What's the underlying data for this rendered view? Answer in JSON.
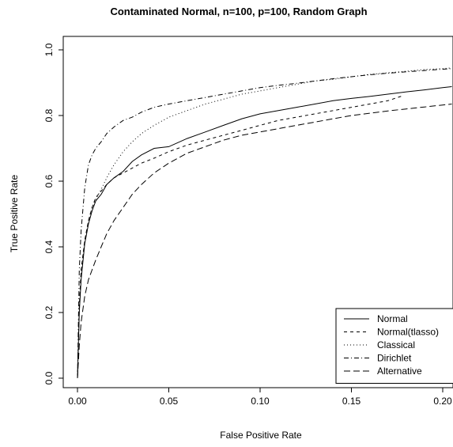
{
  "chart_data": {
    "type": "line",
    "title": "Contaminated Normal, n=100, p=100, Random Graph",
    "xlabel": "False Positive Rate",
    "ylabel": "True Positive Rate",
    "xlim": [
      0.0,
      0.205
    ],
    "ylim": [
      0.0,
      1.0
    ],
    "x_ticks": [
      0.0,
      0.05,
      0.1,
      0.15,
      0.2
    ],
    "x_tick_labels": [
      "0.00",
      "0.05",
      "0.10",
      "0.15",
      "0.20"
    ],
    "y_ticks": [
      0.0,
      0.2,
      0.4,
      0.6,
      0.8,
      1.0
    ],
    "y_tick_labels": [
      "0.0",
      "0.2",
      "0.4",
      "0.6",
      "0.8",
      "1.0"
    ],
    "grid": false,
    "legend_position": "bottom-right",
    "series": [
      {
        "name": "Normal",
        "dash": "solid",
        "x": [
          0,
          0.001,
          0.002,
          0.004,
          0.006,
          0.008,
          0.01,
          0.013,
          0.016,
          0.02,
          0.025,
          0.03,
          0.035,
          0.042,
          0.05,
          0.06,
          0.07,
          0.08,
          0.09,
          0.1,
          0.11,
          0.12,
          0.13,
          0.14,
          0.15,
          0.16,
          0.17,
          0.18,
          0.19,
          0.2,
          0.205
        ],
        "y": [
          0,
          0.2,
          0.3,
          0.41,
          0.47,
          0.51,
          0.54,
          0.56,
          0.59,
          0.61,
          0.63,
          0.66,
          0.68,
          0.7,
          0.705,
          0.73,
          0.75,
          0.77,
          0.79,
          0.805,
          0.815,
          0.825,
          0.835,
          0.845,
          0.852,
          0.858,
          0.865,
          0.872,
          0.878,
          0.885,
          0.888
        ]
      },
      {
        "name": "Normal(tlasso)",
        "dash": "4,4",
        "x": [
          0,
          0.001,
          0.002,
          0.004,
          0.006,
          0.008,
          0.01,
          0.013,
          0.016,
          0.02,
          0.025,
          0.03,
          0.035,
          0.042,
          0.05,
          0.06,
          0.07,
          0.08,
          0.09,
          0.1,
          0.11,
          0.12,
          0.13,
          0.14,
          0.15,
          0.16,
          0.17,
          0.178
        ],
        "y": [
          0,
          0.22,
          0.33,
          0.42,
          0.48,
          0.52,
          0.55,
          0.57,
          0.59,
          0.61,
          0.625,
          0.64,
          0.655,
          0.67,
          0.69,
          0.71,
          0.725,
          0.74,
          0.755,
          0.77,
          0.785,
          0.795,
          0.805,
          0.815,
          0.825,
          0.835,
          0.845,
          0.86
        ]
      },
      {
        "name": "Classical",
        "dash": "1,3",
        "x": [
          0,
          0.001,
          0.002,
          0.004,
          0.006,
          0.008,
          0.01,
          0.013,
          0.016,
          0.02,
          0.025,
          0.03,
          0.035,
          0.042,
          0.05,
          0.06,
          0.07,
          0.08,
          0.09,
          0.1,
          0.11,
          0.12,
          0.13,
          0.14,
          0.15,
          0.16,
          0.17,
          0.18,
          0.19,
          0.2,
          0.205
        ],
        "y": [
          0,
          0.22,
          0.32,
          0.42,
          0.48,
          0.52,
          0.545,
          0.575,
          0.61,
          0.65,
          0.69,
          0.72,
          0.745,
          0.77,
          0.795,
          0.815,
          0.835,
          0.85,
          0.865,
          0.875,
          0.885,
          0.895,
          0.905,
          0.91,
          0.918,
          0.925,
          0.93,
          0.935,
          0.94,
          0.943,
          0.945
        ]
      },
      {
        "name": "Dirichlet",
        "dash": "6,3,1,3",
        "x": [
          0,
          0.001,
          0.002,
          0.004,
          0.006,
          0.008,
          0.01,
          0.013,
          0.016,
          0.02,
          0.025,
          0.03,
          0.035,
          0.042,
          0.05,
          0.06,
          0.07,
          0.08,
          0.09,
          0.1,
          0.11,
          0.12,
          0.13,
          0.14,
          0.15,
          0.16,
          0.17,
          0.18,
          0.19,
          0.2,
          0.205
        ],
        "y": [
          0,
          0.33,
          0.45,
          0.58,
          0.65,
          0.68,
          0.7,
          0.72,
          0.745,
          0.765,
          0.785,
          0.795,
          0.81,
          0.825,
          0.835,
          0.845,
          0.855,
          0.865,
          0.875,
          0.885,
          0.892,
          0.898,
          0.905,
          0.912,
          0.918,
          0.924,
          0.929,
          0.933,
          0.937,
          0.941,
          0.943
        ]
      },
      {
        "name": "Alternative",
        "dash": "8,4",
        "x": [
          0,
          0.001,
          0.002,
          0.004,
          0.006,
          0.008,
          0.01,
          0.013,
          0.016,
          0.02,
          0.025,
          0.03,
          0.035,
          0.042,
          0.05,
          0.06,
          0.07,
          0.08,
          0.09,
          0.1,
          0.11,
          0.12,
          0.13,
          0.14,
          0.15,
          0.16,
          0.17,
          0.18,
          0.19,
          0.2,
          0.205
        ],
        "y": [
          0,
          0.1,
          0.17,
          0.25,
          0.3,
          0.33,
          0.36,
          0.4,
          0.44,
          0.48,
          0.52,
          0.56,
          0.59,
          0.625,
          0.655,
          0.685,
          0.705,
          0.725,
          0.74,
          0.75,
          0.76,
          0.77,
          0.78,
          0.79,
          0.8,
          0.807,
          0.814,
          0.82,
          0.826,
          0.832,
          0.835
        ]
      }
    ]
  }
}
